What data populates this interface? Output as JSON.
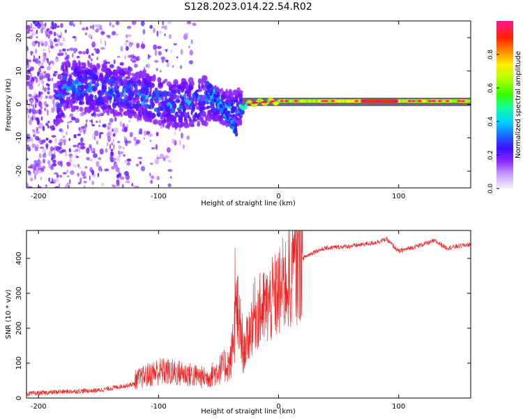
{
  "title": "S128.2023.014.22.54.R02",
  "colors": {
    "snr_line": "#ee2222",
    "colormap": [
      "#e6ccff",
      "#b469ff",
      "#7a0dff",
      "#3a10ff",
      "#1a5cff",
      "#00ccff",
      "#11ffa0",
      "#33ff00",
      "#aaff00",
      "#ffff00",
      "#ffaa00",
      "#ff3300",
      "#ff0080",
      "#ff1493"
    ]
  },
  "chart_data": [
    {
      "type": "heatmap",
      "xlabel": "Height of straight line (km)",
      "ylabel": "Frequency (Hz)",
      "xlim": [
        -210,
        160
      ],
      "ylim": [
        -25,
        25
      ],
      "xticks": [
        -200,
        -100,
        0,
        100
      ],
      "yticks": [
        -20,
        -10,
        0,
        10,
        20
      ],
      "colorbar": {
        "label": "Normalized spectral amplitude",
        "range": [
          0.0,
          1.0
        ],
        "ticks": [
          0.0,
          0.2,
          0.4,
          0.6,
          0.8
        ]
      },
      "ridge": {
        "description_points": [
          [
            -180,
            6
          ],
          [
            -150,
            5
          ],
          [
            -120,
            3
          ],
          [
            -90,
            0
          ],
          [
            -60,
            1
          ],
          [
            -45,
            -1
          ],
          [
            -35,
            -1
          ],
          [
            -20,
            0.5
          ],
          [
            0,
            1
          ],
          [
            50,
            1
          ],
          [
            100,
            1
          ],
          [
            160,
            1
          ]
        ]
      }
    },
    {
      "type": "line",
      "xlabel": "Height of straight line (km)",
      "ylabel": "SNR (10 * v/v)",
      "xlim": [
        -210,
        160
      ],
      "ylim": [
        0,
        480
      ],
      "xticks": [
        -200,
        -100,
        0,
        100
      ],
      "yticks": [
        0,
        100,
        200,
        300,
        400
      ],
      "envelope": [
        [
          -210,
          12
        ],
        [
          -180,
          18
        ],
        [
          -150,
          22
        ],
        [
          -120,
          40
        ],
        [
          -100,
          60
        ],
        [
          -80,
          55
        ],
        [
          -60,
          45
        ],
        [
          -40,
          80
        ],
        [
          -35,
          200
        ],
        [
          -30,
          120
        ],
        [
          -20,
          240
        ],
        [
          -10,
          260
        ],
        [
          0,
          300
        ],
        [
          10,
          350
        ],
        [
          20,
          400
        ],
        [
          30,
          420
        ],
        [
          40,
          430
        ],
        [
          60,
          435
        ],
        [
          80,
          445
        ],
        [
          90,
          455
        ],
        [
          100,
          420
        ],
        [
          120,
          440
        ],
        [
          130,
          450
        ],
        [
          140,
          430
        ],
        [
          160,
          440
        ]
      ]
    }
  ]
}
